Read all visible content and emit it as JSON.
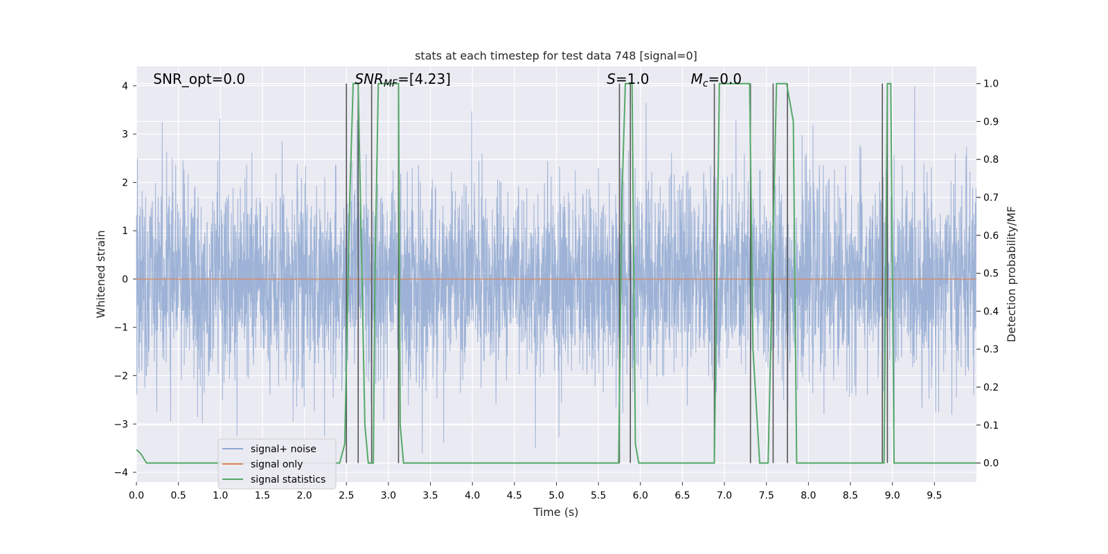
{
  "chart_data": {
    "type": "line",
    "title": "stats at each timestep for test data 748 [signal=0]",
    "xlabel": "Time (s)",
    "ylabel_left": "Whitened strain",
    "ylabel_right": "Detection probability/MF",
    "xlim": [
      0.0,
      10.0
    ],
    "ylim_left": [
      -4.2,
      4.4
    ],
    "ylim_right": [
      -0.05,
      1.045
    ],
    "x_ticks": [
      "0.0",
      "0.5",
      "1.0",
      "1.5",
      "2.0",
      "2.5",
      "3.0",
      "3.5",
      "4.0",
      "4.5",
      "5.0",
      "5.5",
      "6.0",
      "6.5",
      "7.0",
      "7.5",
      "8.0",
      "8.5",
      "9.0",
      "9.5"
    ],
    "y_ticks_left": [
      "4",
      "3",
      "2",
      "1",
      "0",
      "−1",
      "−2",
      "−3",
      "−4"
    ],
    "y_ticks_right": [
      "1.0",
      "0.9",
      "0.8",
      "0.7",
      "0.6",
      "0.5",
      "0.4",
      "0.3",
      "0.2",
      "0.1",
      "0.0"
    ],
    "grid": true,
    "legend_position": "lower-left",
    "annotations": [
      {
        "text": "SNR_opt=0.0",
        "x": 0.2
      },
      {
        "text": "SNR_MF=[4.23]",
        "x": 2.6
      },
      {
        "text": "S=1.0",
        "x": 5.6
      },
      {
        "text": "M_c=0.0",
        "x": 6.6
      }
    ],
    "series": [
      {
        "name": "signal+ noise",
        "color": "#8fa8d1",
        "description_values": "whitened strain noise, approx. gaussian, amplitude within [-3.6, 4.0]",
        "envelope_values": {
          "max_abs_approx": 4.0,
          "typical_range": [
            -2.2,
            2.2
          ]
        }
      },
      {
        "name": "signal only",
        "color": "#dd8452",
        "x": [
          0.0,
          10.0
        ],
        "y": [
          0.0,
          0.0
        ]
      },
      {
        "name": "signal statistics",
        "color": "#55a868",
        "axis": "right",
        "x": [
          0.0,
          0.05,
          0.12,
          2.42,
          2.48,
          2.54,
          2.58,
          2.62,
          2.64,
          2.72,
          2.76,
          2.82,
          2.84,
          2.88,
          3.12,
          3.14,
          3.18,
          5.74,
          5.78,
          5.82,
          5.86,
          5.9,
          5.94,
          5.98,
          6.02,
          6.88,
          6.94,
          7.02,
          7.08,
          7.3,
          7.34,
          7.42,
          7.52,
          7.58,
          7.62,
          7.74,
          7.82,
          7.86,
          8.86,
          8.9,
          8.94,
          8.98,
          9.02,
          10.0
        ],
        "y": [
          0.035,
          0.025,
          0.0,
          0.0,
          0.05,
          0.7,
          1.0,
          1.0,
          1.0,
          0.1,
          0.0,
          0.0,
          0.5,
          1.0,
          1.0,
          0.1,
          0.0,
          0.0,
          0.7,
          1.0,
          1.0,
          1.0,
          0.05,
          0.0,
          0.0,
          0.0,
          1.0,
          1.0,
          1.0,
          1.0,
          0.3,
          0.0,
          0.0,
          0.6,
          1.0,
          1.0,
          0.9,
          0.0,
          0.0,
          0.0,
          1.0,
          1.0,
          0.0,
          0.0
        ]
      }
    ],
    "vertical_markers": [
      {
        "x": 2.5,
        "y_top": 1.0,
        "y_bottom": 0.0
      },
      {
        "x": 2.64,
        "y_top": 1.0,
        "y_bottom": 0.0
      },
      {
        "x": 2.8,
        "y_top": 1.0,
        "y_bottom": 0.0
      },
      {
        "x": 3.12,
        "y_top": 1.0,
        "y_bottom": 0.0
      },
      {
        "x": 5.75,
        "y_top": 1.0,
        "y_bottom": 0.0
      },
      {
        "x": 5.88,
        "y_top": 1.0,
        "y_bottom": 0.0
      },
      {
        "x": 6.88,
        "y_top": 1.0,
        "y_bottom": 0.0
      },
      {
        "x": 7.31,
        "y_top": 1.0,
        "y_bottom": 0.0
      },
      {
        "x": 7.58,
        "y_top": 1.0,
        "y_bottom": 0.0
      },
      {
        "x": 7.75,
        "y_top": 1.0,
        "y_bottom": 0.0
      },
      {
        "x": 8.88,
        "y_top": 1.0,
        "y_bottom": 0.0
      },
      {
        "x": 8.94,
        "y_top": 1.0,
        "y_bottom": 0.0
      }
    ],
    "colors": {
      "plot_bg": "#eaeaf2",
      "grid": "#ffffff",
      "noise": "#8fa8d1",
      "signal_only": "#dd8452",
      "statistics": "#55a868",
      "marker": "#555555"
    }
  }
}
